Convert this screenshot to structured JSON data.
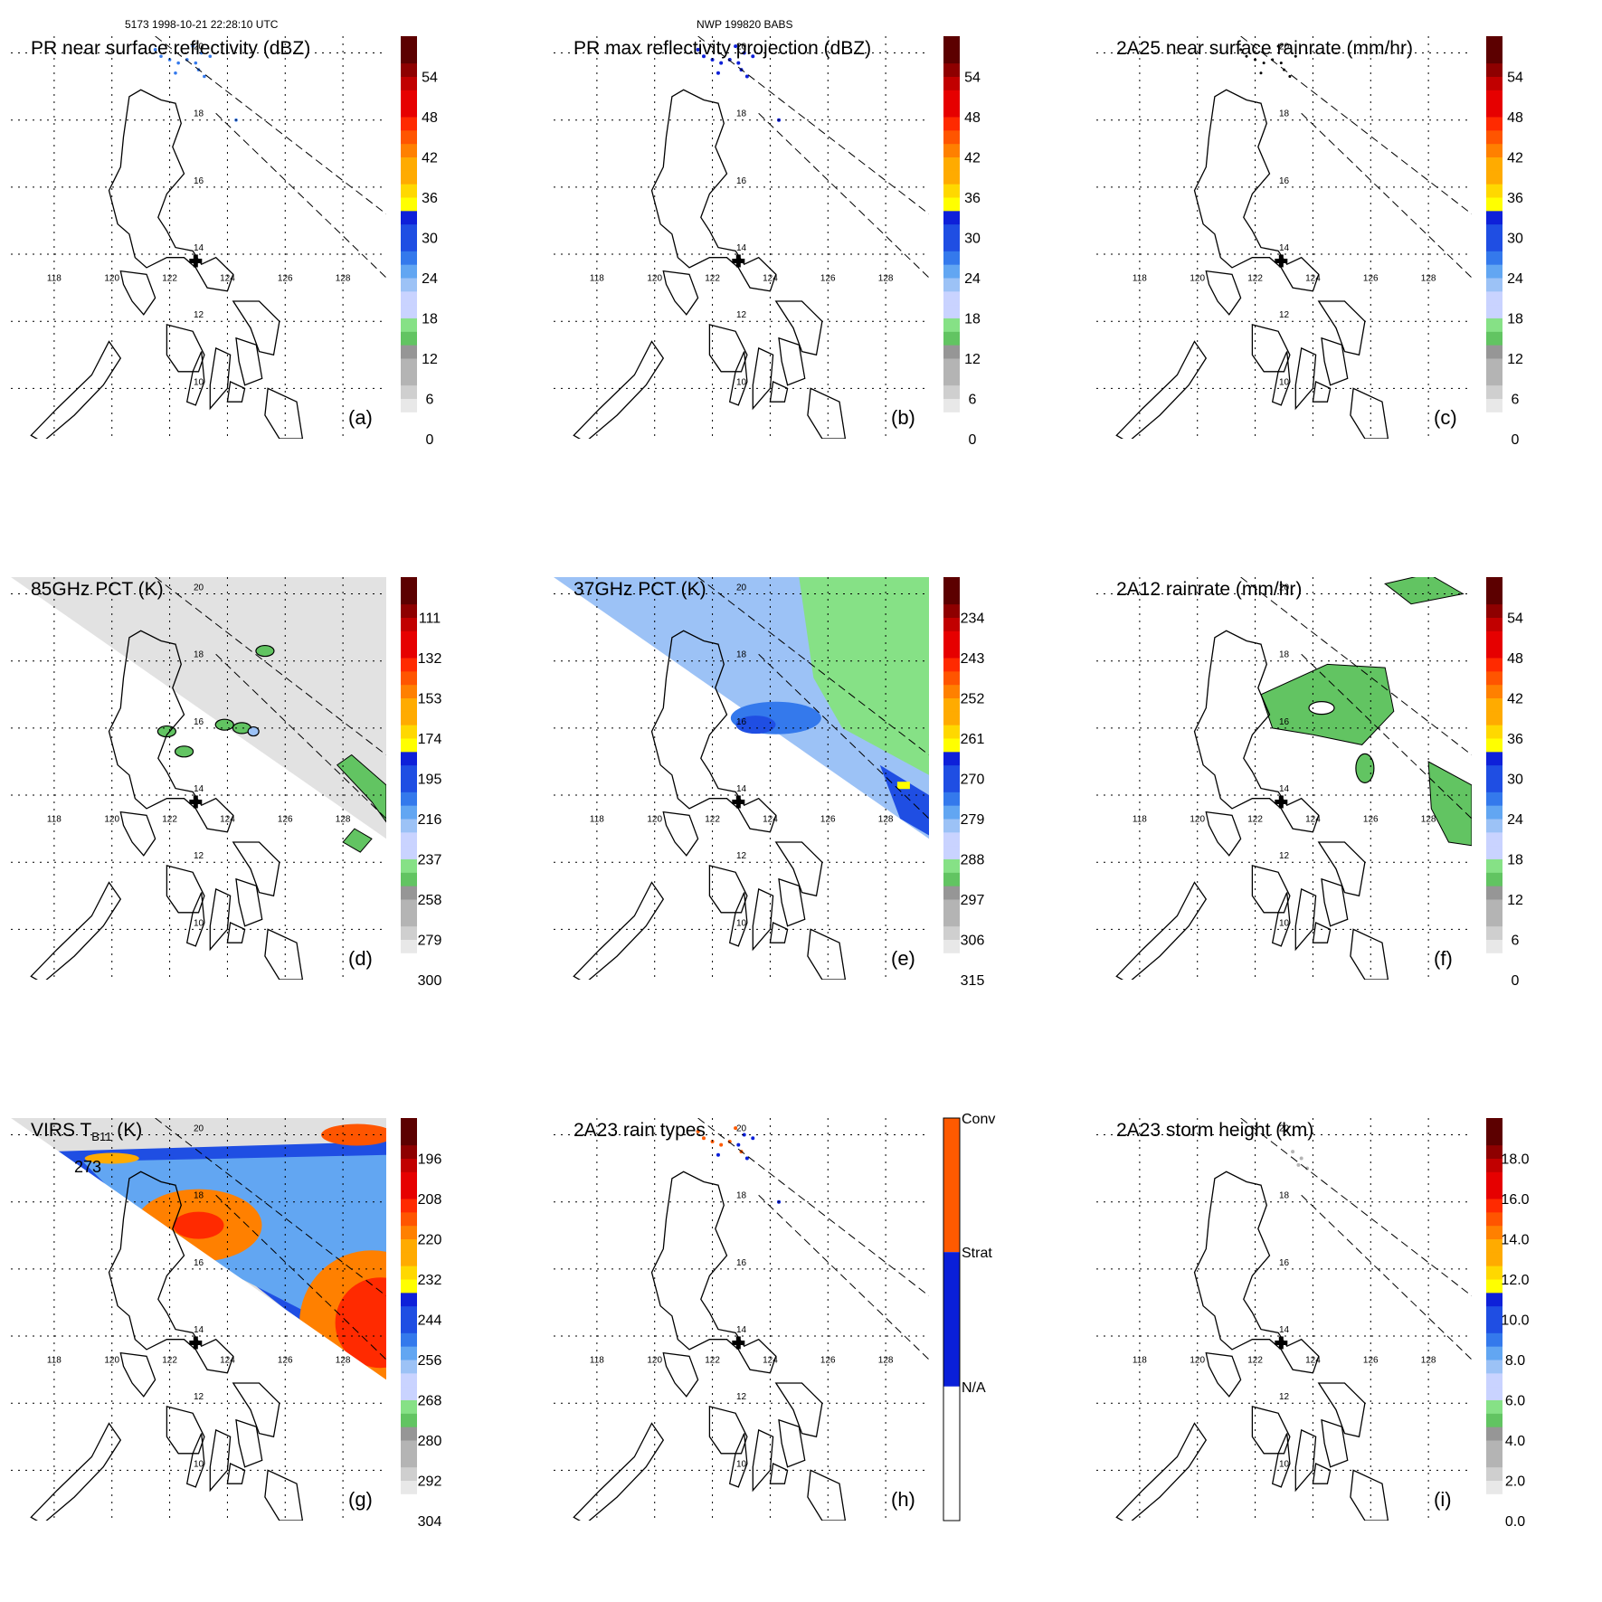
{
  "header": {
    "orbit_info": "5173 1998-10-21 22:28:10 UTC",
    "model_info": "NWP 199820 BABS"
  },
  "map": {
    "lon_labels": [
      "118",
      "120",
      "122",
      "124",
      "126",
      "128"
    ],
    "lat_labels": [
      "20",
      "18",
      "16",
      "14",
      "12",
      "10"
    ],
    "lon_range": [
      116.5,
      129.5
    ],
    "lat_range": [
      8.5,
      20.5
    ],
    "storm_center_marker": {
      "lon": 122.9,
      "lat": 13.8
    }
  },
  "panels": [
    {
      "id": "a",
      "letter": "(a)",
      "title": "PR near surface reflectivity (dBZ)",
      "colorbar_labels": [
        "54",
        "48",
        "42",
        "36",
        "30",
        "24",
        "18",
        "12",
        "6",
        "0"
      ]
    },
    {
      "id": "b",
      "letter": "(b)",
      "title": "PR max reflectivity projection (dBZ)",
      "colorbar_labels": [
        "54",
        "48",
        "42",
        "36",
        "30",
        "24",
        "18",
        "12",
        "6",
        "0"
      ]
    },
    {
      "id": "c",
      "letter": "(c)",
      "title": "2A25 near surface rainrate (mm/hr)",
      "colorbar_labels": [
        "54",
        "48",
        "42",
        "36",
        "30",
        "24",
        "18",
        "12",
        "6",
        "0"
      ]
    },
    {
      "id": "d",
      "letter": "(d)",
      "title": "85GHz PCT (K)",
      "colorbar_labels": [
        "111",
        "132",
        "153",
        "174",
        "195",
        "216",
        "237",
        "258",
        "279",
        "300"
      ]
    },
    {
      "id": "e",
      "letter": "(e)",
      "title": "37GHz PCT (K)",
      "colorbar_labels": [
        "234",
        "243",
        "252",
        "261",
        "270",
        "279",
        "288",
        "297",
        "306",
        "315"
      ]
    },
    {
      "id": "f",
      "letter": "(f)",
      "title": "2A12 rainrate (mm/hr)",
      "colorbar_labels": [
        "54",
        "48",
        "42",
        "36",
        "30",
        "24",
        "18",
        "12",
        "6",
        "0"
      ]
    },
    {
      "id": "g",
      "letter": "(g)",
      "title": "VIRS T",
      "title_sub": "B11",
      "title_suffix": " (K)",
      "contour_label": "273",
      "colorbar_labels": [
        "196",
        "208",
        "220",
        "232",
        "244",
        "256",
        "268",
        "280",
        "292",
        "304"
      ]
    },
    {
      "id": "h",
      "letter": "(h)",
      "title": "2A23 rain types",
      "colorbar_labels": [
        "Conv",
        "Strat",
        "N/A"
      ]
    },
    {
      "id": "i",
      "letter": "(i)",
      "title": "2A23 storm height (km)",
      "colorbar_labels": [
        "18.0",
        "16.0",
        "14.0",
        "12.0",
        "10.0",
        "8.0",
        "6.0",
        "4.0",
        "2.0",
        "0.0"
      ]
    }
  ],
  "colors": {
    "scale": [
      "#ffffff",
      "#e8e8e8",
      "#cfcfcf",
      "#b4b4b4",
      "#969696",
      "#62c462",
      "#86e186",
      "#c9d3ff",
      "#9cc2f6",
      "#62a6f2",
      "#3479ec",
      "#1f4ee3",
      "#0e20d9",
      "#ffff00",
      "#ffd800",
      "#ffab00",
      "#ff8000",
      "#ff5500",
      "#ff2a00",
      "#e60000",
      "#c10000",
      "#8e0000",
      "#5c0000"
    ],
    "rain_types": {
      "conv": "#ff5a00",
      "strat": "#0a1fd9",
      "na": "#ffffff"
    }
  },
  "chart_data": [
    {
      "type": "heatmap",
      "panel": "a",
      "title": "PR near surface reflectivity (dBZ)",
      "units": "dBZ",
      "colorbar_range": [
        0,
        60
      ],
      "ticks": [
        0,
        6,
        12,
        18,
        24,
        30,
        36,
        42,
        48,
        54
      ]
    },
    {
      "type": "heatmap",
      "panel": "b",
      "title": "PR max reflectivity projection (dBZ)",
      "units": "dBZ",
      "colorbar_range": [
        0,
        60
      ],
      "ticks": [
        0,
        6,
        12,
        18,
        24,
        30,
        36,
        42,
        48,
        54
      ]
    },
    {
      "type": "heatmap",
      "panel": "c",
      "title": "2A25 near surface rainrate (mm/hr)",
      "units": "mm/hr",
      "colorbar_range": [
        0,
        60
      ],
      "ticks": [
        0,
        6,
        12,
        18,
        24,
        30,
        36,
        42,
        48,
        54
      ]
    },
    {
      "type": "heatmap",
      "panel": "d",
      "title": "85GHz PCT (K)",
      "units": "K",
      "colorbar_range": [
        300,
        90
      ],
      "ticks": [
        300,
        279,
        258,
        237,
        216,
        195,
        174,
        153,
        132,
        111
      ]
    },
    {
      "type": "heatmap",
      "panel": "e",
      "title": "37GHz PCT (K)",
      "units": "K",
      "colorbar_range": [
        315,
        225
      ],
      "ticks": [
        315,
        306,
        297,
        288,
        279,
        270,
        261,
        252,
        243,
        234
      ]
    },
    {
      "type": "heatmap",
      "panel": "f",
      "title": "2A12 rainrate (mm/hr)",
      "units": "mm/hr",
      "colorbar_range": [
        0,
        60
      ],
      "ticks": [
        0,
        6,
        12,
        18,
        24,
        30,
        36,
        42,
        48,
        54
      ]
    },
    {
      "type": "heatmap",
      "panel": "g",
      "title": "VIRS T B11 (K)",
      "units": "K",
      "colorbar_range": [
        304,
        184
      ],
      "ticks": [
        304,
        292,
        280,
        268,
        256,
        244,
        232,
        220,
        208,
        196
      ],
      "contour": 273
    },
    {
      "type": "heatmap",
      "panel": "h",
      "title": "2A23 rain types",
      "categories": [
        "N/A",
        "Strat",
        "Conv"
      ]
    },
    {
      "type": "heatmap",
      "panel": "i",
      "title": "2A23 storm height (km)",
      "units": "km",
      "colorbar_range": [
        0,
        20
      ],
      "ticks": [
        0.0,
        2.0,
        4.0,
        6.0,
        8.0,
        10.0,
        12.0,
        14.0,
        16.0,
        18.0
      ]
    }
  ]
}
